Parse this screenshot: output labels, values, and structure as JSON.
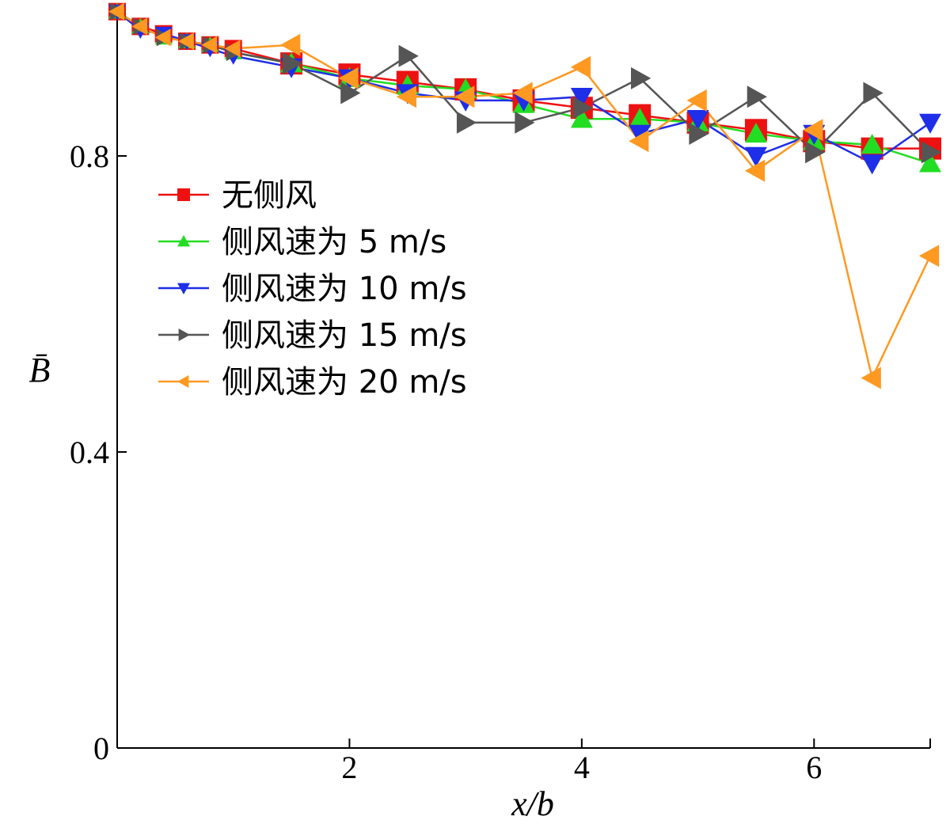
{
  "chart_data": {
    "type": "line",
    "xlabel": "x/b",
    "ylabel": "B̄",
    "xlim": [
      0,
      7
    ],
    "ylim": [
      0,
      1.0
    ],
    "x_ticks": [
      2,
      4,
      6
    ],
    "y_ticks": [
      0,
      0.4,
      0.8
    ],
    "x_tick_labels": [
      "2",
      "4",
      "6"
    ],
    "y_tick_labels": [
      "0",
      "0.4",
      "0.8"
    ],
    "grid": false,
    "legend_position": "center-left",
    "series": [
      {
        "name": "无侧风",
        "color": "#ee1111",
        "marker": "square",
        "x": [
          0,
          0.2,
          0.4,
          0.6,
          0.8,
          1.0,
          1.5,
          2.0,
          2.5,
          3.0,
          3.5,
          4.0,
          4.5,
          5.0,
          5.5,
          6.0,
          6.5,
          7.0
        ],
        "y": [
          0.995,
          0.975,
          0.965,
          0.955,
          0.95,
          0.945,
          0.925,
          0.91,
          0.9,
          0.89,
          0.875,
          0.865,
          0.855,
          0.845,
          0.835,
          0.82,
          0.81,
          0.81
        ]
      },
      {
        "name": "侧风速为 5 m/s",
        "color": "#22dd22",
        "marker": "triangle-up",
        "x": [
          0,
          0.2,
          0.4,
          0.6,
          0.8,
          1.0,
          1.5,
          2.0,
          2.5,
          3.0,
          3.5,
          4.0,
          4.5,
          5.0,
          5.5,
          6.0,
          6.5,
          7.0
        ],
        "y": [
          0.995,
          0.975,
          0.96,
          0.955,
          0.95,
          0.94,
          0.925,
          0.905,
          0.895,
          0.89,
          0.87,
          0.85,
          0.85,
          0.845,
          0.83,
          0.82,
          0.815,
          0.79
        ]
      },
      {
        "name": "侧风速为 10 m/s",
        "color": "#1f2ee8",
        "marker": "triangle-down",
        "x": [
          0,
          0.2,
          0.4,
          0.6,
          0.8,
          1.0,
          1.5,
          2.0,
          2.5,
          3.0,
          3.5,
          4.0,
          4.5,
          5.0,
          5.5,
          6.0,
          6.5,
          7.0
        ],
        "y": [
          0.995,
          0.97,
          0.965,
          0.955,
          0.945,
          0.935,
          0.92,
          0.905,
          0.885,
          0.875,
          0.875,
          0.88,
          0.83,
          0.85,
          0.8,
          0.83,
          0.79,
          0.845
        ]
      },
      {
        "name": "侧风速为 15 m/s",
        "color": "#555555",
        "marker": "triangle-right",
        "x": [
          0,
          0.2,
          0.4,
          0.6,
          0.8,
          1.0,
          1.5,
          2.0,
          2.5,
          3.0,
          3.5,
          4.0,
          4.5,
          5.0,
          5.5,
          6.0,
          6.5,
          7.0
        ],
        "y": [
          0.995,
          0.975,
          0.96,
          0.955,
          0.95,
          0.94,
          0.925,
          0.885,
          0.935,
          0.845,
          0.845,
          0.865,
          0.905,
          0.83,
          0.88,
          0.805,
          0.885,
          0.805
        ]
      },
      {
        "name": "侧风速为 20 m/s",
        "color": "#ff9922",
        "marker": "triangle-left",
        "x": [
          0,
          0.2,
          0.4,
          0.6,
          0.8,
          1.0,
          1.5,
          2.0,
          2.5,
          3.0,
          3.5,
          4.0,
          4.5,
          5.0,
          5.5,
          6.0,
          6.5,
          7.0
        ],
        "y": [
          0.995,
          0.975,
          0.96,
          0.955,
          0.95,
          0.945,
          0.95,
          0.905,
          0.88,
          0.88,
          0.885,
          0.92,
          0.82,
          0.875,
          0.78,
          0.835,
          0.5,
          0.665
        ]
      }
    ]
  }
}
